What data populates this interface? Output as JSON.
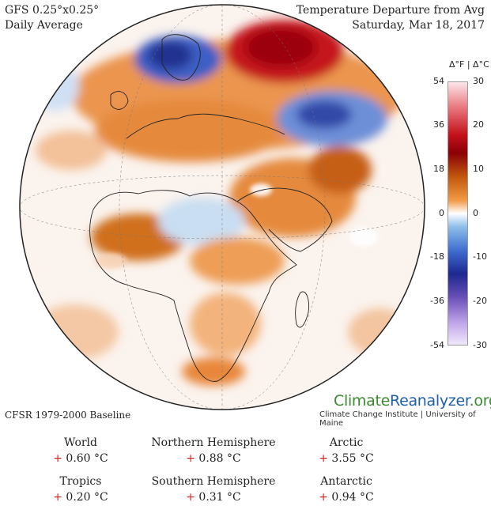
{
  "header": {
    "model_line1": "GFS 0.25°x0.25°",
    "model_line2": "Daily Average",
    "title_line1": "Temperature Departure from Avg",
    "title_line2": "Saturday, Mar 18, 2017"
  },
  "colorbar": {
    "title": "Δ°F | Δ°C",
    "f_ticks": [
      "54",
      "36",
      "18",
      "0",
      "-18",
      "-36",
      "-54"
    ],
    "c_ticks": [
      "30",
      "20",
      "10",
      "0",
      "-10",
      "-20",
      "-30"
    ]
  },
  "branding": {
    "name_part1": "Climate",
    "name_part2": "Reanalyzer",
    "name_part3": ".org",
    "institute": "Climate Change Institute | University of Maine"
  },
  "baseline": "CFSR 1979-2000 Baseline",
  "stats": [
    {
      "label": "World",
      "sign": "+",
      "value": "0.60 °C"
    },
    {
      "label": "Northern Hemisphere",
      "sign": "+",
      "value": "0.88 °C"
    },
    {
      "label": "Arctic",
      "sign": "+",
      "value": "3.55 °C"
    },
    {
      "label": "Tropics",
      "sign": "+",
      "value": "0.20 °C"
    },
    {
      "label": "Southern Hemisphere",
      "sign": "+",
      "value": "0.31 °C"
    },
    {
      "label": "Antarctic",
      "sign": "+",
      "value": "0.94 °C"
    }
  ],
  "colors": {
    "warm": "#e07a2e",
    "hot": "#c4121a",
    "cold": "#3f6ed0",
    "ocean_neutral": "#f6f7fb"
  }
}
